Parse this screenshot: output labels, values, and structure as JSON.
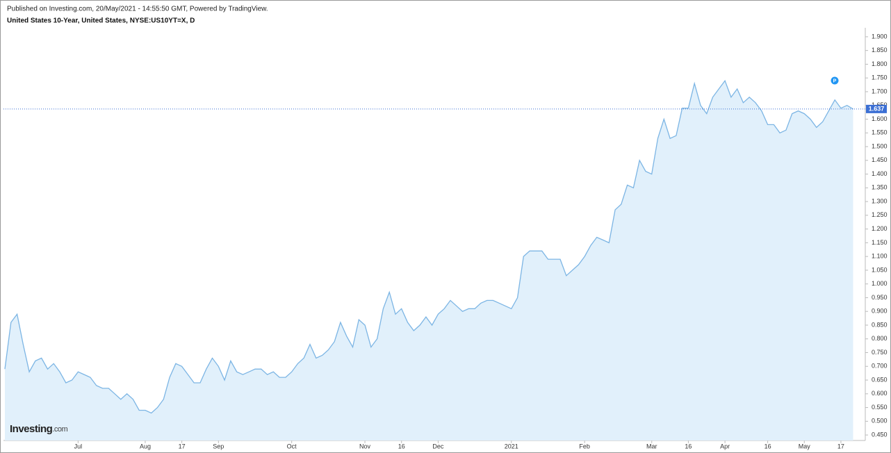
{
  "chart_data": {
    "type": "line",
    "source": "Published on Investing.com, 20/May/2021 - 14:55:50 GMT, Powered by TradingView.",
    "title": "United States 10-Year, United States, NYSE:US10YT=X, D",
    "logo": "Investing",
    "logo_suffix": ".com",
    "marker_label": "P",
    "last_value": 1.637,
    "last_value_label": "1.637",
    "color": "#7cb5e4",
    "fill": "#e1f0fb",
    "categories": [
      null,
      null,
      null,
      null,
      null,
      null,
      null,
      null,
      null,
      null,
      null,
      null,
      "Jul",
      null,
      null,
      null,
      null,
      null,
      null,
      null,
      null,
      null,
      null,
      "Aug",
      null,
      null,
      null,
      null,
      null,
      "17",
      null,
      null,
      null,
      null,
      null,
      "Sep",
      null,
      null,
      null,
      null,
      null,
      null,
      null,
      null,
      null,
      null,
      null,
      "Oct",
      null,
      null,
      null,
      null,
      null,
      null,
      null,
      null,
      null,
      null,
      null,
      "Nov",
      null,
      null,
      null,
      null,
      null,
      "16",
      null,
      null,
      null,
      null,
      null,
      "Dec",
      null,
      null,
      null,
      null,
      null,
      null,
      null,
      null,
      null,
      null,
      null,
      "2021",
      null,
      null,
      null,
      null,
      null,
      null,
      null,
      null,
      null,
      null,
      null,
      "Feb",
      null,
      null,
      null,
      null,
      null,
      null,
      null,
      null,
      null,
      null,
      "Mar",
      null,
      null,
      null,
      null,
      null,
      "16",
      null,
      null,
      null,
      null,
      null,
      "Apr",
      null,
      null,
      null,
      null,
      null,
      null,
      "16",
      null,
      null,
      null,
      null,
      null,
      "May",
      null,
      null,
      null,
      null,
      null,
      "17",
      null,
      null
    ],
    "values": [
      0.69,
      0.86,
      0.89,
      0.78,
      0.68,
      0.72,
      0.73,
      0.69,
      0.71,
      0.68,
      0.64,
      0.65,
      0.68,
      0.67,
      0.66,
      0.63,
      0.62,
      0.62,
      0.6,
      0.58,
      0.6,
      0.58,
      0.54,
      0.54,
      0.53,
      0.55,
      0.58,
      0.66,
      0.71,
      0.7,
      0.67,
      0.64,
      0.64,
      0.69,
      0.73,
      0.7,
      0.65,
      0.72,
      0.68,
      0.67,
      0.68,
      0.69,
      0.69,
      0.67,
      0.68,
      0.66,
      0.66,
      0.68,
      0.71,
      0.73,
      0.78,
      0.73,
      0.74,
      0.76,
      0.79,
      0.86,
      0.81,
      0.77,
      0.87,
      0.85,
      0.77,
      0.8,
      0.91,
      0.97,
      0.89,
      0.91,
      0.86,
      0.83,
      0.85,
      0.88,
      0.85,
      0.89,
      0.91,
      0.94,
      0.92,
      0.9,
      0.91,
      0.91,
      0.93,
      0.94,
      0.94,
      0.93,
      0.92,
      0.91,
      0.95,
      1.1,
      1.12,
      1.12,
      1.12,
      1.09,
      1.09,
      1.09,
      1.03,
      1.05,
      1.07,
      1.1,
      1.14,
      1.17,
      1.16,
      1.15,
      1.27,
      1.29,
      1.36,
      1.35,
      1.45,
      1.41,
      1.4,
      1.53,
      1.6,
      1.53,
      1.54,
      1.64,
      1.64,
      1.73,
      1.65,
      1.62,
      1.68,
      1.71,
      1.74,
      1.68,
      1.71,
      1.66,
      1.68,
      1.66,
      1.63,
      1.58,
      1.58,
      1.55,
      1.56,
      1.62,
      1.63,
      1.62,
      1.6,
      1.57,
      1.59,
      1.63,
      1.67,
      1.64,
      1.65,
      1.637
    ],
    "ylim": [
      0.43,
      1.92
    ],
    "yticks": [
      {
        "value": 0.45,
        "label": "0.450"
      },
      {
        "value": 0.5,
        "label": "0.500"
      },
      {
        "value": 0.55,
        "label": "0.550"
      },
      {
        "value": 0.6,
        "label": "0.600"
      },
      {
        "value": 0.65,
        "label": "0.650"
      },
      {
        "value": 0.7,
        "label": "0.700"
      },
      {
        "value": 0.75,
        "label": "0.750"
      },
      {
        "value": 0.8,
        "label": "0.800"
      },
      {
        "value": 0.85,
        "label": "0.850"
      },
      {
        "value": 0.9,
        "label": "0.900"
      },
      {
        "value": 0.95,
        "label": "0.950"
      },
      {
        "value": 1.0,
        "label": "1.000"
      },
      {
        "value": 1.05,
        "label": "1.050"
      },
      {
        "value": 1.1,
        "label": "1.100"
      },
      {
        "value": 1.15,
        "label": "1.150"
      },
      {
        "value": 1.2,
        "label": "1.200"
      },
      {
        "value": 1.25,
        "label": "1.250"
      },
      {
        "value": 1.3,
        "label": "1.300"
      },
      {
        "value": 1.35,
        "label": "1.350"
      },
      {
        "value": 1.4,
        "label": "1.400"
      },
      {
        "value": 1.45,
        "label": "1.450"
      },
      {
        "value": 1.5,
        "label": "1.500"
      },
      {
        "value": 1.55,
        "label": "1.550"
      },
      {
        "value": 1.6,
        "label": "1.600"
      },
      {
        "value": 1.65,
        "label": "1.650"
      },
      {
        "value": 1.7,
        "label": "1.700"
      },
      {
        "value": 1.75,
        "label": "1.750"
      },
      {
        "value": 1.8,
        "label": "1.800"
      },
      {
        "value": 1.85,
        "label": "1.850"
      },
      {
        "value": 1.9,
        "label": "1.900"
      }
    ],
    "grid": false
  }
}
